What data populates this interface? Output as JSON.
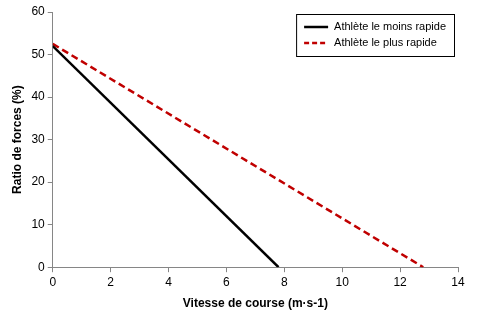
{
  "chart_data": {
    "type": "line",
    "x_label": "Vitesse de course (m·s-1)",
    "y_label": "Ratio de forces (%)",
    "series": [
      {
        "name": "Athlète le moins rapide",
        "color": "#000000",
        "line_style": "solid",
        "x": [
          0,
          7.8
        ],
        "values": [
          52,
          0
        ]
      },
      {
        "name": "Athlète le plus rapide",
        "color": "#c00000",
        "line_style": "dashed",
        "x": [
          0,
          12.8
        ],
        "values": [
          52.5,
          0
        ]
      }
    ],
    "xlim": [
      0,
      14
    ],
    "xticks": [
      0,
      2,
      4,
      6,
      8,
      10,
      12,
      14
    ],
    "ylim": [
      0,
      60
    ],
    "yticks": [
      0,
      10,
      20,
      30,
      40,
      50,
      60
    ],
    "grid": false,
    "legend": "top-right"
  }
}
